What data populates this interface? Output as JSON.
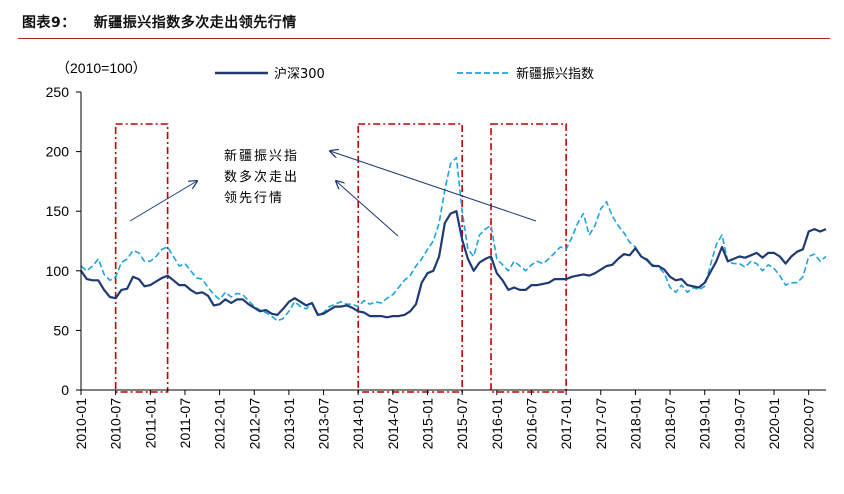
{
  "figure": {
    "number": "图表9：",
    "title": "新疆振兴指数多次走出领先行情"
  },
  "chart_data": {
    "type": "line",
    "unit_label": "（2010=100）",
    "ylim": [
      0,
      250
    ],
    "yticks": [
      0,
      50,
      100,
      150,
      200,
      250
    ],
    "xlim": [
      "2010-01",
      "2020-10"
    ],
    "xticks": [
      "2010-01",
      "2010-07",
      "2011-01",
      "2011-07",
      "2012-01",
      "2012-07",
      "2013-01",
      "2013-07",
      "2014-01",
      "2014-07",
      "2015-01",
      "2015-07",
      "2016-01",
      "2016-07",
      "2017-01",
      "2017-07",
      "2018-01",
      "2018-07",
      "2019-01",
      "2019-07",
      "2020-01",
      "2020-07"
    ],
    "grid": false,
    "legend_position": "top",
    "series": [
      {
        "name": "沪深300",
        "color": "#1f3a73",
        "style": "solid",
        "points": [
          [
            "2010-01",
            100
          ],
          [
            "2010-02",
            93
          ],
          [
            "2010-03",
            92
          ],
          [
            "2010-04",
            92
          ],
          [
            "2010-05",
            84
          ],
          [
            "2010-06",
            78
          ],
          [
            "2010-07",
            77
          ],
          [
            "2010-08",
            84
          ],
          [
            "2010-09",
            85
          ],
          [
            "2010-10",
            95
          ],
          [
            "2010-11",
            93
          ],
          [
            "2010-12",
            87
          ],
          [
            "2011-01",
            88
          ],
          [
            "2011-02",
            91
          ],
          [
            "2011-03",
            94
          ],
          [
            "2011-04",
            96
          ],
          [
            "2011-05",
            92
          ],
          [
            "2011-06",
            88
          ],
          [
            "2011-07",
            88
          ],
          [
            "2011-08",
            84
          ],
          [
            "2011-09",
            81
          ],
          [
            "2011-10",
            82
          ],
          [
            "2011-11",
            79
          ],
          [
            "2011-12",
            71
          ],
          [
            "2012-01",
            72
          ],
          [
            "2012-02",
            76
          ],
          [
            "2012-03",
            73
          ],
          [
            "2012-04",
            76
          ],
          [
            "2012-05",
            76
          ],
          [
            "2012-06",
            72
          ],
          [
            "2012-07",
            69
          ],
          [
            "2012-08",
            66
          ],
          [
            "2012-09",
            67
          ],
          [
            "2012-10",
            64
          ],
          [
            "2012-11",
            63
          ],
          [
            "2012-12",
            68
          ],
          [
            "2013-01",
            74
          ],
          [
            "2013-02",
            77
          ],
          [
            "2013-03",
            74
          ],
          [
            "2013-04",
            71
          ],
          [
            "2013-05",
            73
          ],
          [
            "2013-06",
            63
          ],
          [
            "2013-07",
            64
          ],
          [
            "2013-08",
            67
          ],
          [
            "2013-09",
            70
          ],
          [
            "2013-10",
            70
          ],
          [
            "2013-11",
            71
          ],
          [
            "2013-12",
            69
          ],
          [
            "2014-01",
            66
          ],
          [
            "2014-02",
            65
          ],
          [
            "2014-03",
            62
          ],
          [
            "2014-04",
            62
          ],
          [
            "2014-05",
            62
          ],
          [
            "2014-06",
            61
          ],
          [
            "2014-07",
            62
          ],
          [
            "2014-08",
            62
          ],
          [
            "2014-09",
            63
          ],
          [
            "2014-10",
            66
          ],
          [
            "2014-11",
            72
          ],
          [
            "2014-12",
            90
          ],
          [
            "2015-01",
            98
          ],
          [
            "2015-02",
            100
          ],
          [
            "2015-03",
            112
          ],
          [
            "2015-04",
            140
          ],
          [
            "2015-05",
            148
          ],
          [
            "2015-06",
            150
          ],
          [
            "2015-07",
            126
          ],
          [
            "2015-08",
            110
          ],
          [
            "2015-09",
            100
          ],
          [
            "2015-10",
            107
          ],
          [
            "2015-11",
            110
          ],
          [
            "2015-12",
            112
          ],
          [
            "2016-01",
            98
          ],
          [
            "2016-02",
            92
          ],
          [
            "2016-03",
            84
          ],
          [
            "2016-04",
            86
          ],
          [
            "2016-05",
            84
          ],
          [
            "2016-06",
            84
          ],
          [
            "2016-07",
            88
          ],
          [
            "2016-08",
            88
          ],
          [
            "2016-09",
            89
          ],
          [
            "2016-10",
            90
          ],
          [
            "2016-11",
            93
          ],
          [
            "2016-12",
            93
          ],
          [
            "2017-01",
            93
          ],
          [
            "2017-02",
            95
          ],
          [
            "2017-03",
            96
          ],
          [
            "2017-04",
            97
          ],
          [
            "2017-05",
            96
          ],
          [
            "2017-06",
            98
          ],
          [
            "2017-07",
            101
          ],
          [
            "2017-08",
            104
          ],
          [
            "2017-09",
            105
          ],
          [
            "2017-10",
            110
          ],
          [
            "2017-11",
            114
          ],
          [
            "2017-12",
            113
          ],
          [
            "2018-01",
            119
          ],
          [
            "2018-02",
            112
          ],
          [
            "2018-03",
            109
          ],
          [
            "2018-04",
            104
          ],
          [
            "2018-05",
            104
          ],
          [
            "2018-06",
            101
          ],
          [
            "2018-07",
            95
          ],
          [
            "2018-08",
            92
          ],
          [
            "2018-09",
            93
          ],
          [
            "2018-10",
            88
          ],
          [
            "2018-11",
            87
          ],
          [
            "2018-12",
            86
          ],
          [
            "2019-01",
            90
          ],
          [
            "2019-02",
            99
          ],
          [
            "2019-03",
            108
          ],
          [
            "2019-04",
            120
          ],
          [
            "2019-05",
            108
          ],
          [
            "2019-06",
            110
          ],
          [
            "2019-07",
            112
          ],
          [
            "2019-08",
            111
          ],
          [
            "2019-09",
            113
          ],
          [
            "2019-10",
            115
          ],
          [
            "2019-11",
            111
          ],
          [
            "2019-12",
            115
          ],
          [
            "2020-01",
            115
          ],
          [
            "2020-02",
            112
          ],
          [
            "2020-03",
            106
          ],
          [
            "2020-04",
            112
          ],
          [
            "2020-05",
            116
          ],
          [
            "2020-06",
            118
          ],
          [
            "2020-07",
            133
          ],
          [
            "2020-08",
            135
          ],
          [
            "2020-09",
            133
          ],
          [
            "2020-10",
            135
          ]
        ]
      },
      {
        "name": "新疆振兴指数",
        "color": "#1fa2e0",
        "style": "dashed",
        "points": [
          [
            "2010-01",
            104
          ],
          [
            "2010-02",
            100
          ],
          [
            "2010-03",
            104
          ],
          [
            "2010-04",
            110
          ],
          [
            "2010-05",
            97
          ],
          [
            "2010-06",
            92
          ],
          [
            "2010-07",
            95
          ],
          [
            "2010-08",
            107
          ],
          [
            "2010-09",
            110
          ],
          [
            "2010-10",
            117
          ],
          [
            "2010-11",
            115
          ],
          [
            "2010-12",
            108
          ],
          [
            "2011-01",
            108
          ],
          [
            "2011-02",
            112
          ],
          [
            "2011-03",
            118
          ],
          [
            "2011-04",
            120
          ],
          [
            "2011-05",
            112
          ],
          [
            "2011-06",
            104
          ],
          [
            "2011-07",
            106
          ],
          [
            "2011-08",
            100
          ],
          [
            "2011-09",
            94
          ],
          [
            "2011-10",
            93
          ],
          [
            "2011-11",
            86
          ],
          [
            "2011-12",
            80
          ],
          [
            "2012-01",
            76
          ],
          [
            "2012-02",
            82
          ],
          [
            "2012-03",
            78
          ],
          [
            "2012-04",
            81
          ],
          [
            "2012-05",
            80
          ],
          [
            "2012-06",
            75
          ],
          [
            "2012-07",
            70
          ],
          [
            "2012-08",
            67
          ],
          [
            "2012-09",
            65
          ],
          [
            "2012-10",
            62
          ],
          [
            "2012-11",
            58
          ],
          [
            "2012-12",
            60
          ],
          [
            "2013-01",
            66
          ],
          [
            "2013-02",
            74
          ],
          [
            "2013-03",
            70
          ],
          [
            "2013-04",
            68
          ],
          [
            "2013-05",
            73
          ],
          [
            "2013-06",
            64
          ],
          [
            "2013-07",
            65
          ],
          [
            "2013-08",
            70
          ],
          [
            "2013-09",
            72
          ],
          [
            "2013-10",
            74
          ],
          [
            "2013-11",
            72
          ],
          [
            "2013-12",
            72
          ],
          [
            "2014-01",
            70
          ],
          [
            "2014-02",
            75
          ],
          [
            "2014-03",
            72
          ],
          [
            "2014-04",
            74
          ],
          [
            "2014-05",
            73
          ],
          [
            "2014-06",
            77
          ],
          [
            "2014-07",
            80
          ],
          [
            "2014-08",
            86
          ],
          [
            "2014-09",
            92
          ],
          [
            "2014-10",
            96
          ],
          [
            "2014-11",
            104
          ],
          [
            "2014-12",
            110
          ],
          [
            "2015-01",
            118
          ],
          [
            "2015-02",
            125
          ],
          [
            "2015-03",
            140
          ],
          [
            "2015-04",
            168
          ],
          [
            "2015-05",
            190
          ],
          [
            "2015-06",
            195
          ],
          [
            "2015-07",
            150
          ],
          [
            "2015-08",
            118
          ],
          [
            "2015-09",
            112
          ],
          [
            "2015-10",
            130
          ],
          [
            "2015-11",
            135
          ],
          [
            "2015-12",
            138
          ],
          [
            "2016-01",
            110
          ],
          [
            "2016-02",
            105
          ],
          [
            "2016-03",
            100
          ],
          [
            "2016-04",
            108
          ],
          [
            "2016-05",
            104
          ],
          [
            "2016-06",
            100
          ],
          [
            "2016-07",
            105
          ],
          [
            "2016-08",
            108
          ],
          [
            "2016-09",
            106
          ],
          [
            "2016-10",
            110
          ],
          [
            "2016-11",
            115
          ],
          [
            "2016-12",
            120
          ],
          [
            "2017-01",
            118
          ],
          [
            "2017-02",
            128
          ],
          [
            "2017-03",
            140
          ],
          [
            "2017-04",
            148
          ],
          [
            "2017-05",
            130
          ],
          [
            "2017-06",
            138
          ],
          [
            "2017-07",
            152
          ],
          [
            "2017-08",
            158
          ],
          [
            "2017-09",
            146
          ],
          [
            "2017-10",
            138
          ],
          [
            "2017-11",
            132
          ],
          [
            "2017-12",
            124
          ],
          [
            "2018-01",
            120
          ],
          [
            "2018-02",
            112
          ],
          [
            "2018-03",
            110
          ],
          [
            "2018-04",
            105
          ],
          [
            "2018-05",
            103
          ],
          [
            "2018-06",
            98
          ],
          [
            "2018-07",
            86
          ],
          [
            "2018-08",
            82
          ],
          [
            "2018-09",
            88
          ],
          [
            "2018-10",
            82
          ],
          [
            "2018-11",
            86
          ],
          [
            "2018-12",
            84
          ],
          [
            "2019-01",
            87
          ],
          [
            "2019-02",
            105
          ],
          [
            "2019-03",
            122
          ],
          [
            "2019-04",
            130
          ],
          [
            "2019-05",
            108
          ],
          [
            "2019-06",
            106
          ],
          [
            "2019-07",
            106
          ],
          [
            "2019-08",
            103
          ],
          [
            "2019-09",
            108
          ],
          [
            "2019-10",
            106
          ],
          [
            "2019-11",
            100
          ],
          [
            "2019-12",
            105
          ],
          [
            "2020-01",
            102
          ],
          [
            "2020-02",
            96
          ],
          [
            "2020-03",
            88
          ],
          [
            "2020-04",
            90
          ],
          [
            "2020-05",
            90
          ],
          [
            "2020-06",
            95
          ],
          [
            "2020-07",
            112
          ],
          [
            "2020-08",
            114
          ],
          [
            "2020-09",
            108
          ],
          [
            "2020-10",
            112
          ]
        ]
      }
    ],
    "highlight_boxes": [
      {
        "from": "2010-07",
        "to": "2011-04"
      },
      {
        "from": "2014-01",
        "to": "2015-07"
      },
      {
        "from": "2015-12",
        "to": "2017-01"
      }
    ],
    "annotation": {
      "lines": [
        "新疆振兴指",
        "数多次走出",
        "领先行情"
      ]
    }
  }
}
